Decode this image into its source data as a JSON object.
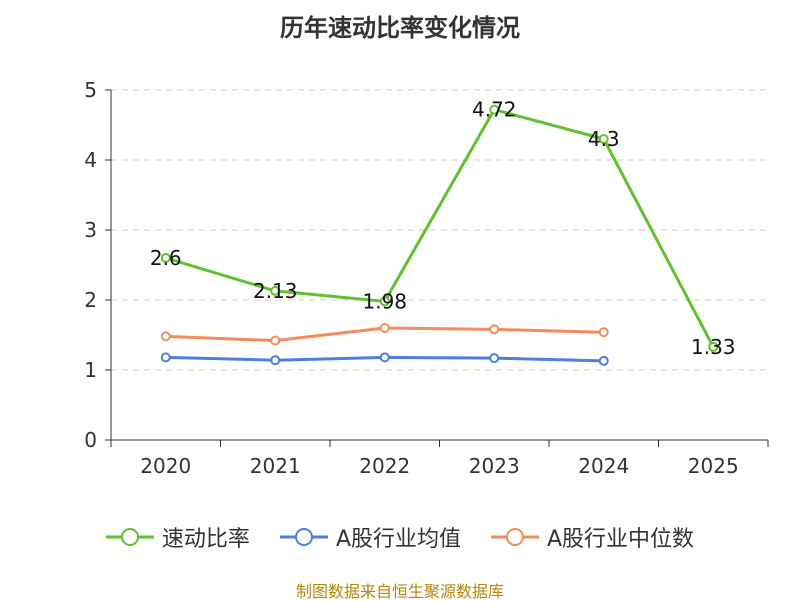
{
  "title": "历年速动比率变化情况",
  "source": "制图数据来自恒生聚源数据库",
  "chart_data": {
    "type": "line",
    "categories": [
      "2020",
      "2021",
      "2022",
      "2023",
      "2024",
      "2025"
    ],
    "ylim": [
      0,
      5
    ],
    "yticks": [
      0,
      1,
      2,
      3,
      4,
      5
    ],
    "grid": true,
    "legend_position": "bottom",
    "series": [
      {
        "name": "速动比率",
        "color": "#5fc12d",
        "values": [
          2.6,
          2.13,
          1.98,
          4.72,
          4.3,
          1.33
        ],
        "labels": [
          "2.6",
          "2.13",
          "1.98",
          "4.72",
          "4.3",
          "1.33"
        ]
      },
      {
        "name": "A股行业均值",
        "color": "#4d7fdb",
        "values": [
          1.18,
          1.14,
          1.18,
          1.17,
          1.13,
          null
        ]
      },
      {
        "name": "A股行业中位数",
        "color": "#f28d5c",
        "values": [
          1.48,
          1.42,
          1.6,
          1.58,
          1.54,
          null
        ]
      }
    ]
  }
}
